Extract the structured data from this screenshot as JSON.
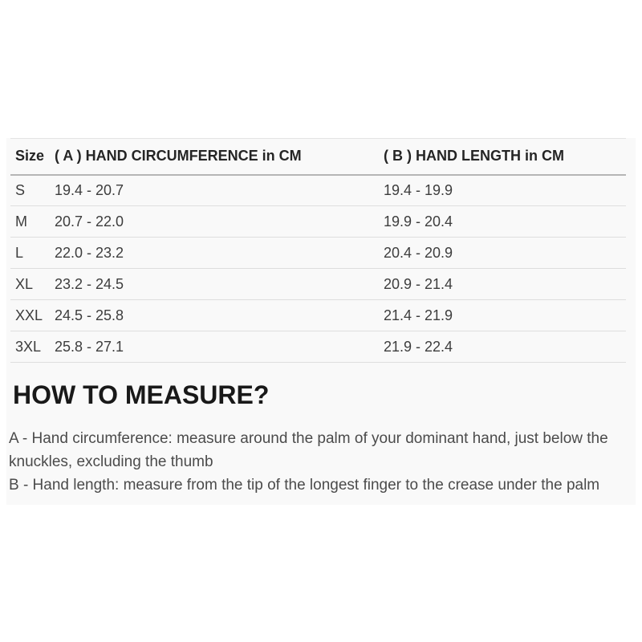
{
  "size_table": {
    "columns": [
      "Size",
      "( A ) HAND CIRCUMFERENCE in CM",
      "( B ) HAND LENGTH in CM"
    ],
    "rows": [
      {
        "size": "S",
        "hand_circumference_cm": "19.4 - 20.7",
        "hand_length_cm": "19.4 - 19.9"
      },
      {
        "size": "M",
        "hand_circumference_cm": "20.7 - 22.0",
        "hand_length_cm": "19.9 - 20.4"
      },
      {
        "size": "L",
        "hand_circumference_cm": "22.0 - 23.2",
        "hand_length_cm": "20.4 - 20.9"
      },
      {
        "size": "XL",
        "hand_circumference_cm": "23.2 - 24.5",
        "hand_length_cm": "20.9 - 21.4"
      },
      {
        "size": "XXL",
        "hand_circumference_cm": "24.5 - 25.8",
        "hand_length_cm": "21.4 - 21.9"
      },
      {
        "size": "3XL",
        "hand_circumference_cm": "25.8 - 27.1",
        "hand_length_cm": "21.9 - 22.4"
      }
    ]
  },
  "how_to_measure": {
    "heading": "HOW TO MEASURE?",
    "instruction_a": "A - Hand circumference: measure around the palm of your dominant hand, just below the knuckles, excluding the thumb",
    "instruction_b": "B - Hand length: measure from the tip of the longest finger to the crease under the palm"
  },
  "colors": {
    "section_background": "#f9f9f9",
    "header_border": "#b5b5b5",
    "row_border": "#dedede"
  }
}
